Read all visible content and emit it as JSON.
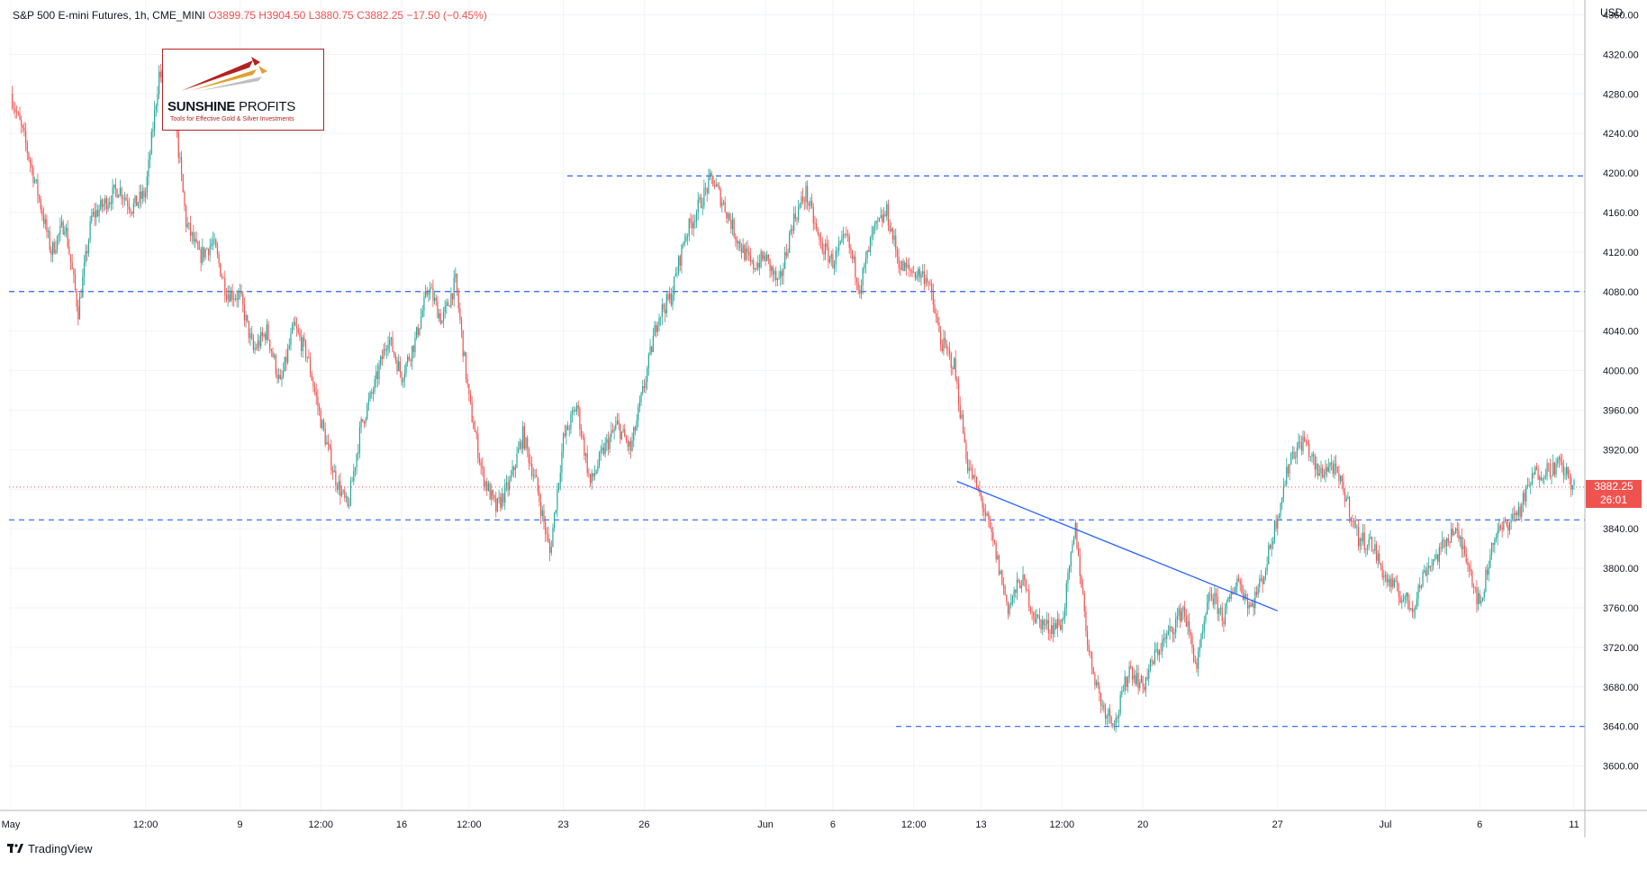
{
  "legend": {
    "symbol": "S&P 500 E-mini Futures, 1h, CME_MINI",
    "open": "O3899.75",
    "high": "H3904.50",
    "low": "L3880.75",
    "close": "C3882.25",
    "change": "−17.50 (−0.45%)"
  },
  "currency": "USD",
  "last_price": {
    "value": "3882.25",
    "countdown": "26:01"
  },
  "logo": {
    "brand_bold": "SUNSHINE",
    "brand_thin": " PROFITS",
    "tagline": "Tools for Effective Gold & Silver Investments"
  },
  "footer": {
    "brand": "TradingView"
  },
  "colors": {
    "up": "#26a69a",
    "down": "#ef5350",
    "level_line": "#2962ff",
    "trend_line": "#2962ff",
    "last_price": "#ef5350"
  },
  "chart_data": {
    "type": "candlestick",
    "title": "S&P 500 E-mini Futures, 1h, CME_MINI",
    "timeframe": "1h",
    "ylim": [
      3555,
      4375
    ],
    "yticks": [
      3600,
      3640,
      3680,
      3720,
      3760,
      3800,
      3840,
      3880,
      3920,
      3960,
      4000,
      4040,
      4080,
      4120,
      4160,
      4200,
      4240,
      4280,
      4320,
      4360
    ],
    "ytick_labels": [
      "3600.00",
      "3640.00",
      "3680.00",
      "3720.00",
      "3760.00",
      "3800.00",
      "3840.00",
      "3880.00",
      "3920.00",
      "3960.00",
      "4000.00",
      "4040.00",
      "4080.00",
      "4120.00",
      "4160.00",
      "4200.00",
      "4240.00",
      "4280.00",
      "4320.00",
      "4360.00"
    ],
    "xticks": [
      "May",
      "12:00",
      "9",
      "12:00",
      "16",
      "12:00",
      "23",
      "26",
      "Jun",
      "6",
      "12:00",
      "13",
      "12:00",
      "20",
      "27",
      "Jul",
      "6",
      "11"
    ],
    "horizontal_levels": [
      4197,
      4080,
      3849,
      3640
    ],
    "last_price": 3882.25,
    "trend_line": {
      "from": [
        "Jun 10",
        3888
      ],
      "to": [
        "Jun 27",
        3757
      ]
    },
    "path": [
      [
        "May",
        4280
      ],
      [
        "",
        4235
      ],
      [
        "",
        4180
      ],
      [
        "",
        4120
      ],
      [
        "",
        4150
      ],
      [
        "",
        4060
      ],
      [
        "",
        4155
      ],
      [
        "",
        4170
      ],
      [
        "",
        4185
      ],
      [
        "",
        4165
      ],
      [
        "12:00",
        4180
      ],
      [
        "",
        4300
      ],
      [
        "",
        4280
      ],
      [
        "",
        4150
      ],
      [
        "",
        4115
      ],
      [
        "",
        4130
      ],
      [
        "",
        4080
      ],
      [
        "9",
        4075
      ],
      [
        "",
        4020
      ],
      [
        "",
        4040
      ],
      [
        "",
        3985
      ],
      [
        "",
        4045
      ],
      [
        "",
        4015
      ],
      [
        "12:00",
        3950
      ],
      [
        "",
        3895
      ],
      [
        "",
        3860
      ],
      [
        "",
        3945
      ],
      [
        "",
        3985
      ],
      [
        "",
        4035
      ],
      [
        "16",
        3995
      ],
      [
        "",
        4030
      ],
      [
        "",
        4085
      ],
      [
        "",
        4050
      ],
      [
        "",
        4090
      ],
      [
        "12:00",
        3970
      ],
      [
        "",
        3895
      ],
      [
        "",
        3860
      ],
      [
        "",
        3885
      ],
      [
        "",
        3935
      ],
      [
        "",
        3885
      ],
      [
        "",
        3815
      ],
      [
        "23",
        3930
      ],
      [
        "",
        3965
      ],
      [
        "",
        3885
      ],
      [
        "",
        3920
      ],
      [
        "",
        3945
      ],
      [
        "",
        3920
      ],
      [
        "26",
        3985
      ],
      [
        "",
        4055
      ],
      [
        "",
        4075
      ],
      [
        "",
        4135
      ],
      [
        "",
        4165
      ],
      [
        "",
        4195
      ],
      [
        "",
        4165
      ],
      [
        "",
        4130
      ],
      [
        "",
        4105
      ],
      [
        "Jun",
        4115
      ],
      [
        "",
        4085
      ],
      [
        "",
        4150
      ],
      [
        "",
        4180
      ],
      [
        "",
        4130
      ],
      [
        "6",
        4110
      ],
      [
        "",
        4135
      ],
      [
        "",
        4085
      ],
      [
        "",
        4140
      ],
      [
        "",
        4160
      ],
      [
        "",
        4105
      ],
      [
        "12:00",
        4100
      ],
      [
        "",
        4095
      ],
      [
        "",
        4030
      ],
      [
        "",
        4005
      ],
      [
        "",
        3905
      ],
      [
        "13",
        3870
      ],
      [
        "",
        3820
      ],
      [
        "",
        3760
      ],
      [
        "",
        3790
      ],
      [
        "",
        3750
      ],
      [
        "",
        3740
      ],
      [
        "12:00",
        3745
      ],
      [
        "",
        3840
      ],
      [
        "",
        3715
      ],
      [
        "",
        3660
      ],
      [
        "",
        3645
      ],
      [
        "",
        3700
      ],
      [
        "20",
        3680
      ],
      [
        "",
        3715
      ],
      [
        "",
        3735
      ],
      [
        "",
        3760
      ],
      [
        "",
        3700
      ],
      [
        "",
        3775
      ],
      [
        "",
        3750
      ],
      [
        "",
        3790
      ],
      [
        "",
        3760
      ],
      [
        "",
        3795
      ],
      [
        "27",
        3855
      ],
      [
        "",
        3915
      ],
      [
        "",
        3930
      ],
      [
        "",
        3895
      ],
      [
        "",
        3905
      ],
      [
        "",
        3875
      ],
      [
        "",
        3830
      ],
      [
        "",
        3825
      ],
      [
        "Jul",
        3790
      ],
      [
        "",
        3775
      ],
      [
        "",
        3760
      ],
      [
        "",
        3800
      ],
      [
        "",
        3815
      ],
      [
        "",
        3840
      ],
      [
        "",
        3815
      ],
      [
        "6",
        3760
      ],
      [
        "",
        3830
      ],
      [
        "",
        3845
      ],
      [
        "",
        3860
      ],
      [
        "",
        3895
      ],
      [
        "",
        3900
      ],
      [
        "",
        3905
      ],
      [
        "11",
        3882
      ]
    ]
  }
}
